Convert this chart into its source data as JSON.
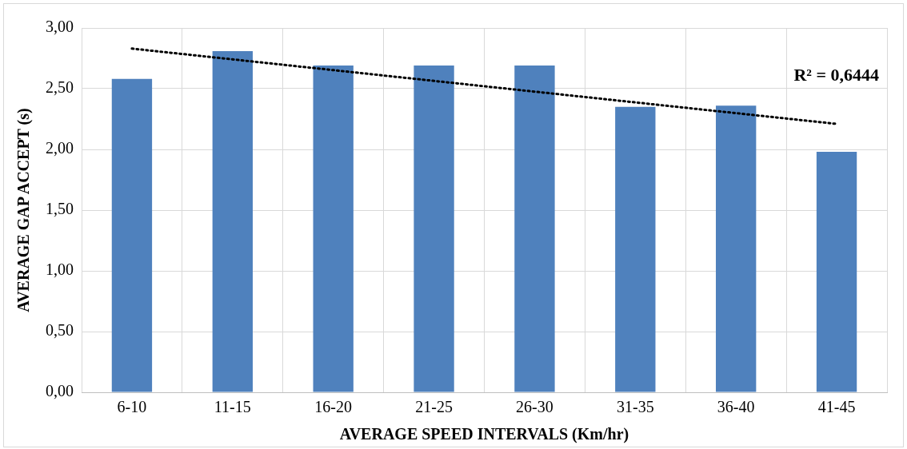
{
  "chart_data": {
    "type": "bar",
    "xlabel": "AVERAGE SPEED INTERVALS (Km/hr)",
    "ylabel": "AVERAGE GAP ACCEPT (s)",
    "categories": [
      "6-10",
      "11-15",
      "16-20",
      "21-25",
      "26-30",
      "31-35",
      "36-40",
      "41-45"
    ],
    "series": [
      {
        "color": "#4f81bd",
        "values": [
          2.58,
          2.81,
          2.69,
          2.69,
          2.69,
          2.35,
          2.36,
          1.98
        ]
      },
      {
        "type": "line",
        "color": "#000000",
        "line_style": "dotted",
        "marker": "none",
        "x": [
          "6-10",
          "41-45"
        ],
        "values": [
          2.83,
          2.21
        ]
      }
    ],
    "ylim": [
      0,
      3
    ],
    "yticks": [
      {
        "value": 0,
        "label": "0,00"
      },
      {
        "value": 0.5,
        "label": "0,50"
      },
      {
        "value": 1,
        "label": "1,00"
      },
      {
        "value": 1.5,
        "label": "1,50"
      },
      {
        "value": 2,
        "label": "2,00"
      },
      {
        "value": 2.5,
        "label": "2,50"
      },
      {
        "value": 3,
        "label": "3,00"
      }
    ],
    "grid": true,
    "legend": false,
    "annotations": [
      "R² = 0,6444"
    ]
  }
}
